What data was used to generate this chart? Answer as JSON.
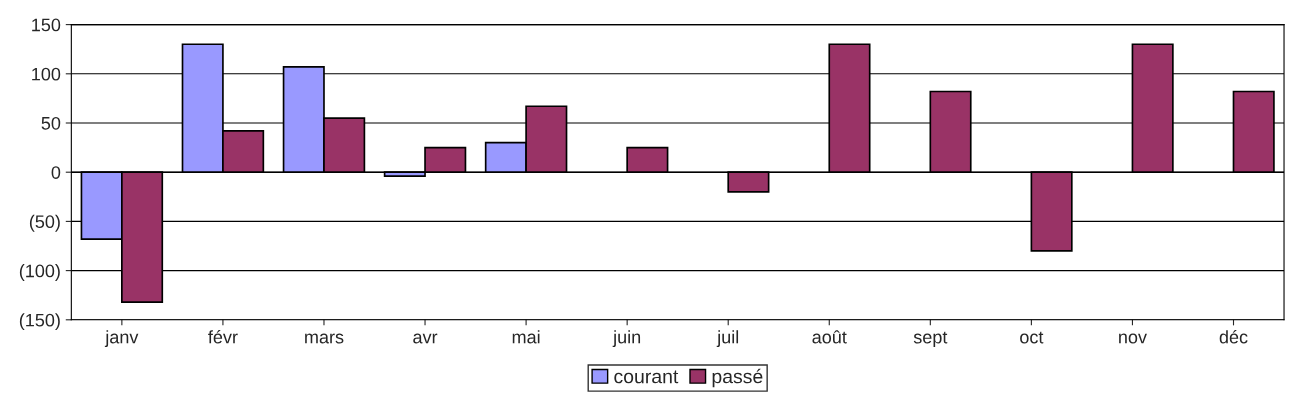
{
  "chart_data": {
    "type": "bar",
    "categories": [
      "janv",
      "févr",
      "mars",
      "avr",
      "mai",
      "juin",
      "juil",
      "août",
      "sept",
      "oct",
      "nov",
      "déc"
    ],
    "series": [
      {
        "name": "courant",
        "color": "#9999ff",
        "values": [
          -68,
          130,
          107,
          -4,
          30,
          null,
          null,
          null,
          null,
          null,
          null,
          null
        ]
      },
      {
        "name": "passé",
        "color": "#993366",
        "values": [
          -132,
          42,
          55,
          25,
          67,
          25,
          -20,
          130,
          82,
          -80,
          130,
          82
        ]
      }
    ],
    "ylim": [
      -150,
      150
    ],
    "yticks": [
      {
        "value": -150,
        "label": "(150)"
      },
      {
        "value": -100,
        "label": "(100)"
      },
      {
        "value": -50,
        "label": "(50)"
      },
      0,
      50,
      100,
      150
    ],
    "grid": "y",
    "legend": "bottom"
  }
}
